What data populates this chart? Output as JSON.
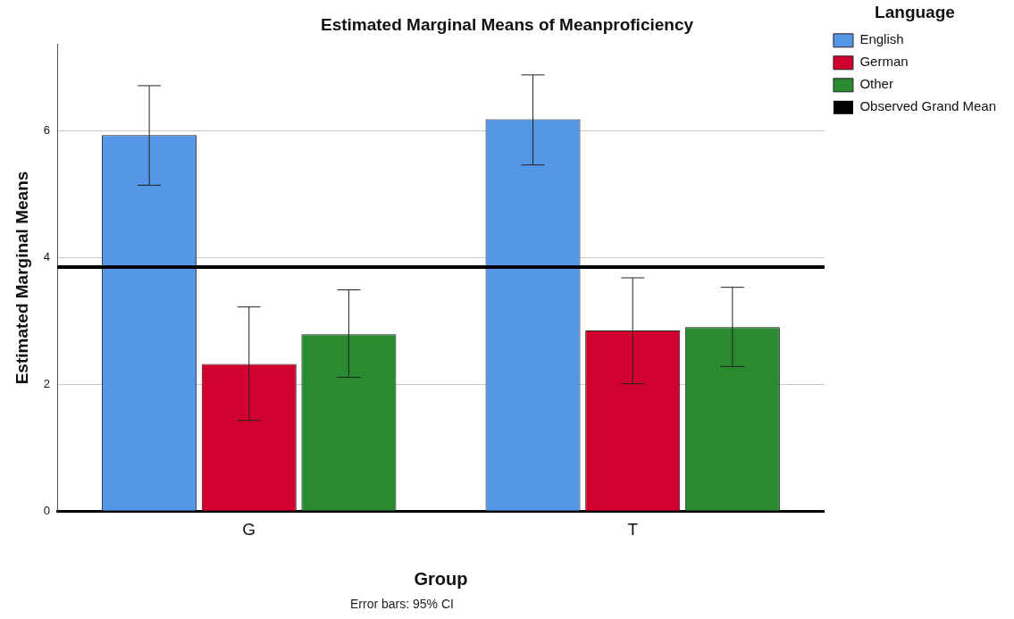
{
  "chart_data": {
    "type": "bar",
    "title": "Estimated Marginal Means of Meanproficiency",
    "xlabel": "Group",
    "ylabel": "Estimated Marginal Means",
    "legend_title": "Language",
    "categories": [
      "G",
      "T"
    ],
    "series": [
      {
        "name": "English",
        "color": "#5596e6",
        "values": [
          5.93,
          6.18
        ],
        "errors": [
          [
            5.14,
            6.71
          ],
          [
            5.46,
            6.88
          ]
        ]
      },
      {
        "name": "German",
        "color": "#d2002e",
        "values": [
          2.32,
          2.85
        ],
        "errors": [
          [
            1.43,
            3.22
          ],
          [
            2.01,
            3.68
          ]
        ]
      },
      {
        "name": "Other",
        "color": "#2a8a2f",
        "values": [
          2.79,
          2.9
        ],
        "errors": [
          [
            2.11,
            3.49
          ],
          [
            2.28,
            3.53
          ]
        ]
      }
    ],
    "ref_lines": [
      {
        "axis": "y",
        "value": 3.85,
        "label": "Observed Grand Mean",
        "color": "#000000"
      }
    ],
    "ylim": [
      0,
      7.36
    ],
    "yticks": [
      0,
      2,
      4,
      6
    ],
    "grid": "y",
    "legend": "top right",
    "annotations": [
      "Error bars: 95% CI"
    ]
  }
}
